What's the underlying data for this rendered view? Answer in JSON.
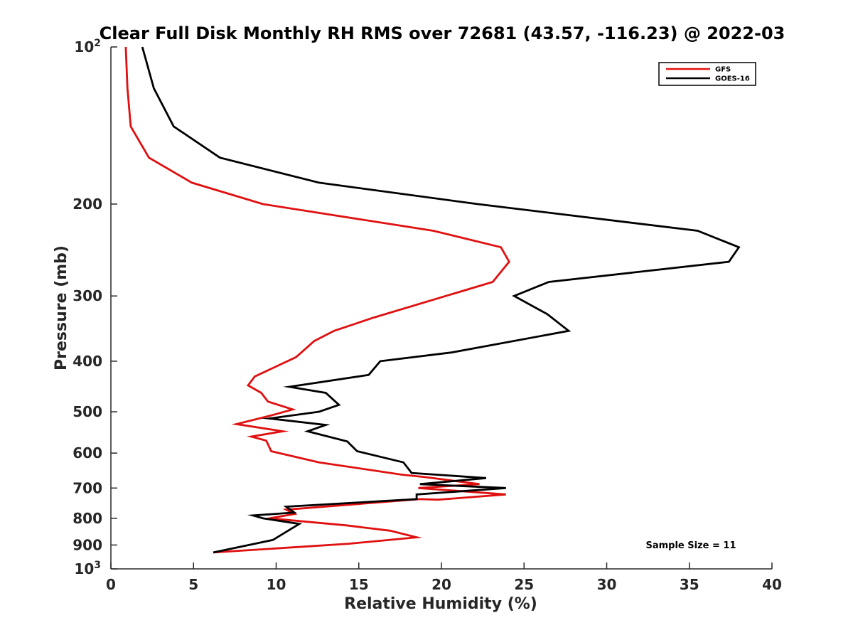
{
  "chart_data": {
    "type": "line",
    "title": "Clear Full Disk Monthly RH RMS over 72681 (43.57, -116.23) @ 2022-03",
    "xlabel": "Relative Humidity (%)",
    "ylabel": "Pressure (mb)",
    "xlim": [
      0,
      40
    ],
    "ylim": [
      100,
      1000
    ],
    "yscale": "log",
    "yreversed": true,
    "grid": false,
    "legend_position": "top-right",
    "x_ticks": [
      0,
      5,
      10,
      15,
      20,
      25,
      30,
      35,
      40
    ],
    "x_tick_labels": [
      "0",
      "5",
      "10",
      "15",
      "20",
      "25",
      "30",
      "35",
      "40"
    ],
    "y_ticks": [
      200,
      300,
      400,
      500,
      600,
      700,
      800,
      900
    ],
    "y_tick_labels": [
      "200",
      "300",
      "400",
      "500",
      "600",
      "700",
      "800",
      "900"
    ],
    "y_end_labels": {
      "top": {
        "base": "10",
        "exp": "2"
      },
      "bottom": {
        "base": "10",
        "exp": "3"
      }
    },
    "annotation": "Sample Size = 11",
    "series": [
      {
        "name": "GFS",
        "color": "#e01010",
        "x": [
          0.9,
          1.0,
          1.2,
          2.3,
          4.9,
          9.2,
          19.5,
          23.6,
          24.1,
          23.1,
          15.9,
          13.5,
          12.3,
          11.8,
          11.2,
          8.7,
          8.3,
          9.1,
          9.5,
          11.0,
          9.5,
          7.6,
          10.4,
          8.5,
          9.4,
          9.7,
          12.6,
          17.6,
          19.0,
          22.3,
          18.6,
          23.9,
          19.8,
          18.7,
          10.6,
          11.1,
          9.6,
          14.2,
          16.9,
          18.5,
          14.4,
          6.2
        ],
        "y": [
          100,
          120,
          142,
          163,
          182,
          200,
          225,
          242,
          258,
          282,
          330,
          350,
          366,
          378,
          393,
          428,
          445,
          460,
          478,
          495,
          510,
          528,
          545,
          558,
          568,
          595,
          625,
          660,
          667,
          688,
          700,
          720,
          737,
          735,
          770,
          785,
          800,
          825,
          845,
          870,
          895,
          930
        ]
      },
      {
        "name": "GOES-16",
        "color": "#000000",
        "x": [
          1.9,
          2.6,
          3.8,
          6.6,
          12.6,
          22.2,
          35.5,
          38.0,
          37.4,
          26.5,
          24.4,
          26.4,
          27.7,
          20.6,
          16.3,
          15.6,
          10.8,
          13.0,
          13.8,
          12.6,
          9.6,
          13.0,
          11.9,
          14.3,
          14.9,
          17.7,
          18.2,
          22.7,
          18.7,
          23.9,
          18.5,
          18.5,
          10.6,
          11.1,
          8.6,
          9.2,
          11.4,
          9.8,
          6.2
        ],
        "y": [
          100,
          120,
          142,
          163,
          182,
          200,
          225,
          242,
          258,
          282,
          300,
          325,
          350,
          385,
          400,
          425,
          448,
          460,
          485,
          500,
          515,
          530,
          545,
          570,
          595,
          625,
          655,
          670,
          688,
          700,
          720,
          735,
          760,
          780,
          790,
          800,
          820,
          880,
          930
        ]
      }
    ]
  }
}
